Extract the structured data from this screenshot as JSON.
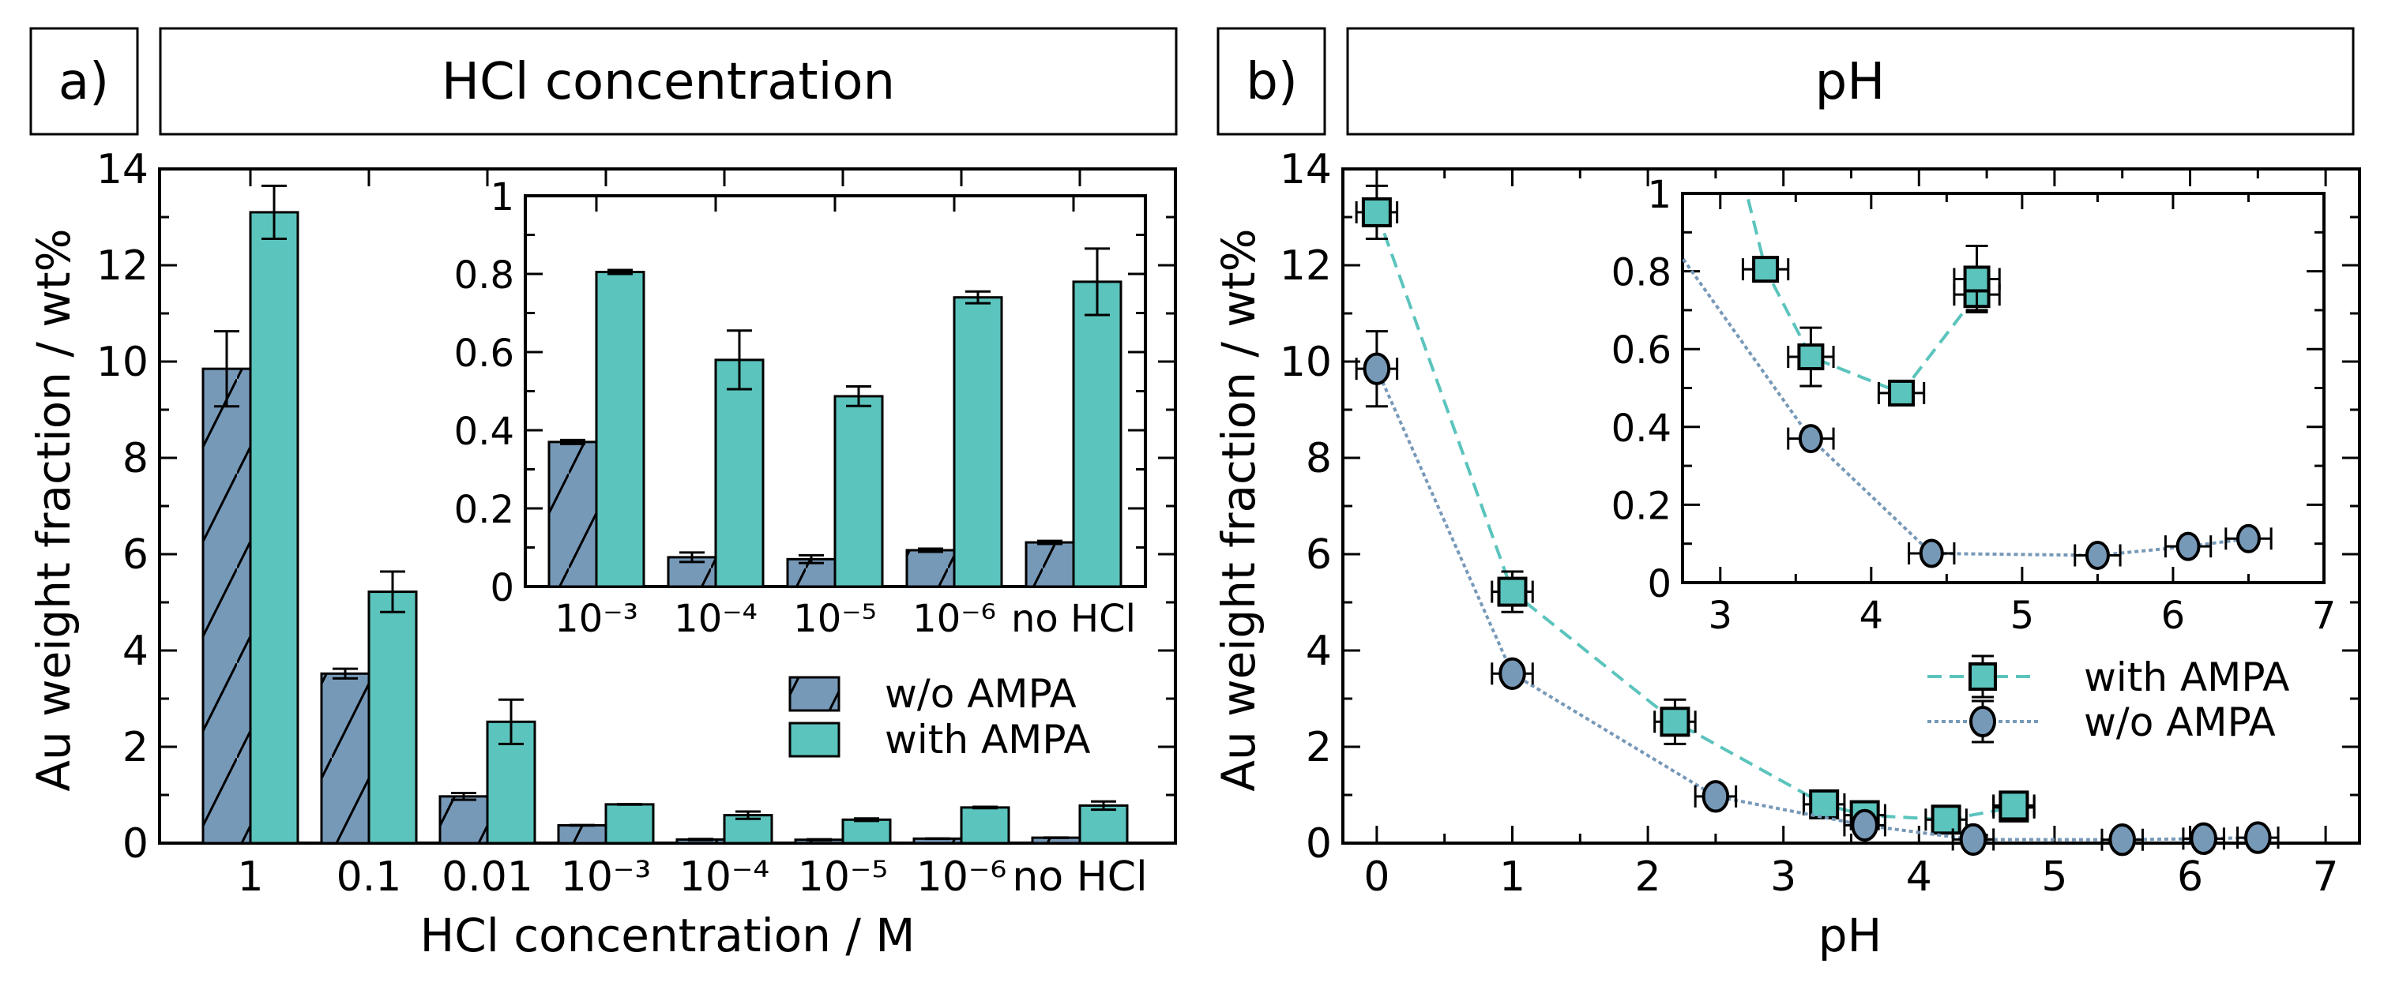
{
  "panels": {
    "a": {
      "label": "a)",
      "title": "HCl concentration"
    },
    "b": {
      "label": "b)",
      "title": "pH"
    }
  },
  "colors": {
    "w/o AMPA": "#7799b8",
    "with AMPA": "#5bc4bd",
    "axis": "#000000"
  },
  "chart_data": [
    {
      "type": "bar",
      "panel": "a",
      "xlabel": "HCl concentration / M",
      "ylabel": "Au weight fraction / wt%",
      "categories": [
        "1",
        "0.1",
        "0.01",
        "10⁻³",
        "10⁻⁴",
        "10⁻⁵",
        "10⁻⁶",
        "no HCl"
      ],
      "ylim": [
        0,
        14
      ],
      "yticks": [
        0,
        2,
        4,
        6,
        8,
        10,
        12,
        14
      ],
      "legend_position": "right",
      "series": [
        {
          "name": "w/o AMPA",
          "hatch": "diagonal",
          "values": [
            9.85,
            3.52,
            0.97,
            0.37,
            0.075,
            0.07,
            0.093,
            0.113
          ],
          "errors": [
            0.78,
            0.1,
            0.07,
            0.005,
            0.012,
            0.01,
            0.004,
            0.004
          ]
        },
        {
          "name": "with AMPA",
          "values": [
            13.1,
            5.22,
            2.52,
            0.805,
            0.58,
            0.487,
            0.74,
            0.78
          ],
          "errors": [
            0.55,
            0.42,
            0.46,
            0.005,
            0.075,
            0.025,
            0.015,
            0.085
          ]
        }
      ],
      "inset": {
        "categories": [
          "10⁻³",
          "10⁻⁴",
          "10⁻⁵",
          "10⁻⁶",
          "no HCl"
        ],
        "ylim": [
          0,
          1
        ],
        "yticks": [
          "0",
          "0.2",
          "0.4",
          "0.6",
          "0.8",
          "1"
        ]
      }
    },
    {
      "type": "scatter",
      "panel": "b",
      "xlabel": "pH",
      "ylabel": "Au weight fraction / wt%",
      "xlim": [
        -0.25,
        7.25
      ],
      "ylim": [
        0,
        14
      ],
      "xticks": [
        0,
        1,
        2,
        3,
        4,
        5,
        6,
        7
      ],
      "yticks": [
        0,
        2,
        4,
        6,
        8,
        10,
        12,
        14
      ],
      "legend_position": "right",
      "series": [
        {
          "name": "with AMPA",
          "marker": "square",
          "line": "dashed",
          "x": [
            0,
            1,
            2.2,
            3.3,
            3.6,
            4.2,
            4.7,
            4.7
          ],
          "y": [
            13.1,
            5.22,
            2.52,
            0.805,
            0.58,
            0.487,
            0.74,
            0.78
          ],
          "yerr": [
            0.55,
            0.42,
            0.46,
            0.01,
            0.075,
            0.025,
            0.04,
            0.085
          ],
          "xerr": 0.15
        },
        {
          "name": "w/o AMPA",
          "marker": "circle",
          "line": "dotted",
          "x": [
            0,
            1,
            2.5,
            3.6,
            4.4,
            5.5,
            6.1,
            6.5
          ],
          "y": [
            9.85,
            3.52,
            0.97,
            0.37,
            0.075,
            0.07,
            0.093,
            0.113
          ],
          "yerr": [
            0.78,
            0.1,
            0.07,
            0.005,
            0.012,
            0.01,
            0.004,
            0.004
          ],
          "xerr": 0.15
        }
      ],
      "inset": {
        "xlim": [
          2.75,
          7
        ],
        "ylim": [
          0,
          1
        ],
        "xticks": [
          "3",
          "4",
          "5",
          "6",
          "7"
        ],
        "yticks": [
          "0",
          "0.2",
          "0.4",
          "0.6",
          "0.8",
          "1"
        ]
      }
    }
  ]
}
